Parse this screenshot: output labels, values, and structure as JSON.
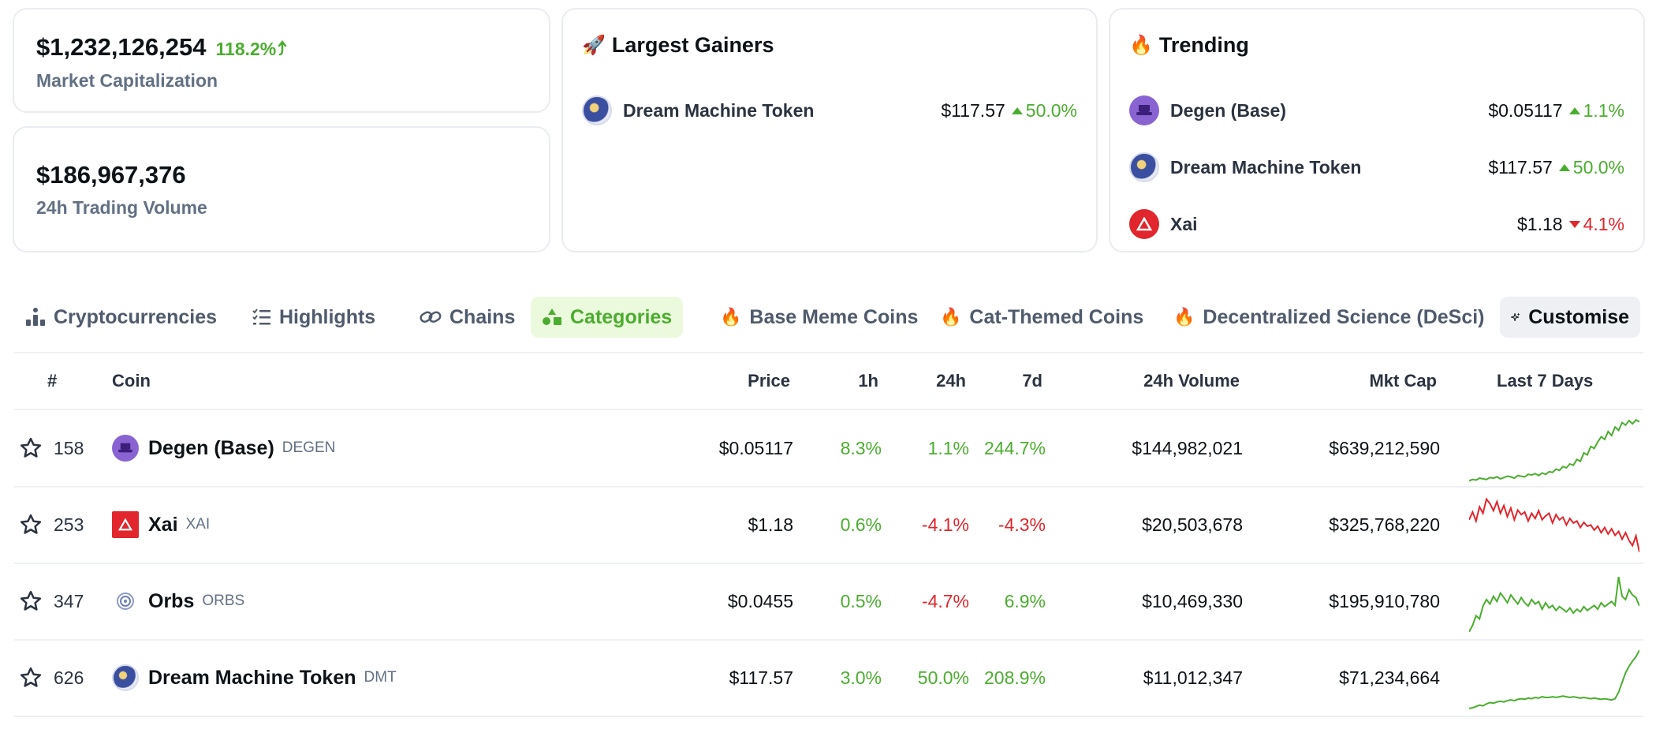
{
  "market_cap": {
    "value": "$1,232,126,254",
    "change": "118.2%",
    "label": "Market Capitalization"
  },
  "trading_volume": {
    "value": "$186,967,376",
    "label": "24h Trading Volume"
  },
  "largest_gainers": {
    "title": "Largest Gainers",
    "items": [
      {
        "name": "Dream Machine Token",
        "price": "$117.57",
        "change": "50.0%",
        "dir": "up"
      }
    ]
  },
  "trending": {
    "title": "Trending",
    "items": [
      {
        "name": "Degen (Base)",
        "price": "$0.05117",
        "change": "1.1%",
        "dir": "up"
      },
      {
        "name": "Dream Machine Token",
        "price": "$117.57",
        "change": "50.0%",
        "dir": "up"
      },
      {
        "name": "Xai",
        "price": "$1.18",
        "change": "4.1%",
        "dir": "down"
      }
    ]
  },
  "tabs": [
    {
      "label": "Cryptocurrencies",
      "icon": "bar-chart-icon"
    },
    {
      "label": "Highlights",
      "icon": "list-icon"
    },
    {
      "label": "Chains",
      "icon": "link-icon"
    },
    {
      "label": "Categories",
      "icon": "shapes-icon",
      "active": true
    },
    {
      "label": "Base Meme Coins",
      "icon": "fire-icon"
    },
    {
      "label": "Cat-Themed Coins",
      "icon": "fire-icon"
    },
    {
      "label": "Decentralized Science (DeSci)",
      "icon": "fire-icon"
    }
  ],
  "customise_label": "Customise",
  "table": {
    "headers": {
      "rank": "#",
      "coin": "Coin",
      "price": "Price",
      "h1": "1h",
      "h24": "24h",
      "d7": "7d",
      "volume": "24h Volume",
      "mcap": "Mkt Cap",
      "last7": "Last 7 Days"
    },
    "rows": [
      {
        "rank": "158",
        "name": "Degen (Base)",
        "symbol": "DEGEN",
        "price": "$0.05117",
        "h1": "8.3%",
        "h1_dir": "up",
        "h24": "1.1%",
        "h24_dir": "up",
        "d7": "244.7%",
        "d7_dir": "up",
        "volume": "$144,982,021",
        "mcap": "$639,212,590",
        "spark_color": "#4bad2f",
        "spark": [
          2,
          4,
          3,
          6,
          5,
          4,
          7,
          6,
          8,
          5,
          7,
          9,
          8,
          6,
          10,
          9,
          8,
          12,
          11,
          13,
          10,
          14,
          12,
          16,
          15,
          20,
          18,
          24,
          22,
          28,
          26,
          35,
          32,
          45,
          42,
          55,
          52,
          62,
          70,
          66,
          78,
          72,
          85,
          80,
          92,
          88,
          95,
          90,
          96,
          93
        ]
      },
      {
        "rank": "253",
        "name": "Xai",
        "symbol": "XAI",
        "price": "$1.18",
        "h1": "0.6%",
        "h1_dir": "up",
        "h24": "-4.1%",
        "h24_dir": "down",
        "d7": "-4.3%",
        "d7_dir": "down",
        "volume": "$20,503,678",
        "mcap": "$325,768,220",
        "spark_color": "#e1262d",
        "spark": [
          60,
          72,
          58,
          80,
          70,
          92,
          85,
          74,
          88,
          70,
          82,
          65,
          78,
          60,
          75,
          68,
          72,
          58,
          70,
          62,
          74,
          60,
          66,
          70,
          55,
          68,
          60,
          64,
          52,
          62,
          55,
          58,
          48,
          56,
          50,
          52,
          44,
          50,
          40,
          48,
          38,
          46,
          36,
          42,
          30,
          40,
          28,
          20,
          35,
          10
        ]
      },
      {
        "rank": "347",
        "name": "Orbs",
        "symbol": "ORBS",
        "price": "$0.0455",
        "h1": "0.5%",
        "h1_dir": "up",
        "h24": "-4.7%",
        "h24_dir": "down",
        "d7": "6.9%",
        "d7_dir": "up",
        "volume": "$10,469,330",
        "mcap": "$195,910,780",
        "spark_color": "#4bad2f",
        "spark": [
          5,
          15,
          30,
          25,
          45,
          55,
          48,
          60,
          52,
          65,
          58,
          50,
          62,
          55,
          48,
          58,
          50,
          45,
          55,
          48,
          52,
          40,
          50,
          42,
          46,
          38,
          44,
          40,
          36,
          42,
          34,
          40,
          36,
          44,
          38,
          42,
          46,
          40,
          50,
          44,
          48,
          52,
          46,
          90,
          60,
          55,
          70,
          62,
          58,
          45
        ]
      },
      {
        "rank": "626",
        "name": "Dream Machine Token",
        "symbol": "DMT",
        "price": "$117.57",
        "h1": "3.0%",
        "h1_dir": "up",
        "h24": "50.0%",
        "h24_dir": "up",
        "d7": "208.9%",
        "d7_dir": "up",
        "volume": "$11,012,347",
        "mcap": "$71,234,664",
        "spark_color": "#4bad2f",
        "spark": [
          5,
          6,
          8,
          10,
          9,
          12,
          14,
          13,
          15,
          16,
          15,
          17,
          18,
          17,
          19,
          20,
          19,
          21,
          20,
          22,
          21,
          23,
          22,
          22,
          23,
          22,
          23,
          24,
          23,
          22,
          23,
          22,
          21,
          22,
          21,
          20,
          21,
          20,
          19,
          20,
          19,
          18,
          20,
          30,
          45,
          60,
          70,
          78,
          85,
          95
        ]
      }
    ]
  }
}
